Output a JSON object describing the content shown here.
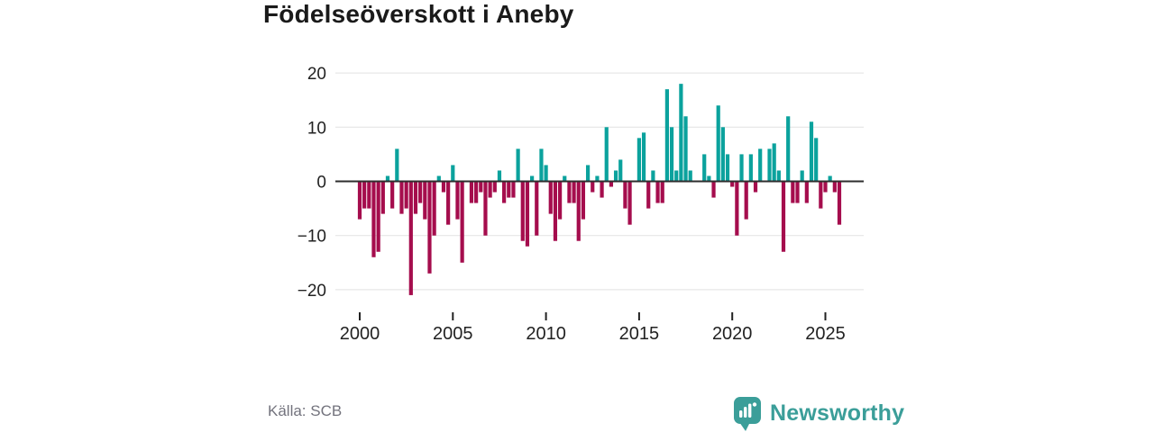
{
  "title": "Födelseöverskott i Aneby",
  "source": "Källa: SCB",
  "logo": {
    "text": "Newsworthy"
  },
  "colors": {
    "positive": "#0ba29d",
    "negative": "#a50d4d",
    "grid": "#e2e2e2",
    "zero_line": "#2e2e2e",
    "axis_text": "#222222",
    "source_text": "#73737d",
    "logo": "#3b9e99",
    "background": "#ffffff"
  },
  "chart_data": {
    "type": "bar",
    "title": "Födelseöverskott i Aneby",
    "xlabel": "",
    "ylabel": "",
    "period": "quarterly",
    "start_year": 2000,
    "x_ticks": [
      2000,
      2005,
      2010,
      2015,
      2020,
      2025
    ],
    "y_ticks": [
      -20,
      -10,
      0,
      10,
      20
    ],
    "ylim": [
      -21.5,
      20
    ],
    "grid": true,
    "legend": false,
    "values": [
      -7,
      -5,
      -5,
      -14,
      -13,
      -6,
      1,
      -5,
      6,
      -6,
      -5,
      -21,
      -6,
      -4,
      -7,
      -17,
      -10,
      1,
      -2,
      -8,
      3,
      -7,
      -15,
      0,
      -4,
      -4,
      -2,
      -10,
      -3,
      -2,
      2,
      -4,
      -3,
      -3,
      6,
      -11,
      -12,
      1,
      -10,
      6,
      3,
      -6,
      -11,
      -7,
      1,
      -4,
      -4,
      -11,
      -7,
      3,
      -2,
      1,
      -3,
      10,
      -1,
      2,
      4,
      -5,
      -8,
      0,
      8,
      9,
      -5,
      2,
      -4,
      -4,
      17,
      10,
      2,
      18,
      12,
      2,
      0,
      0,
      5,
      1,
      -3,
      14,
      10,
      5,
      -1,
      -10,
      5,
      -7,
      5,
      -2,
      6,
      0,
      6,
      7,
      2,
      -13,
      12,
      -4,
      -4,
      2,
      -4,
      11,
      8,
      -5,
      -2,
      1,
      -2,
      -8
    ]
  }
}
